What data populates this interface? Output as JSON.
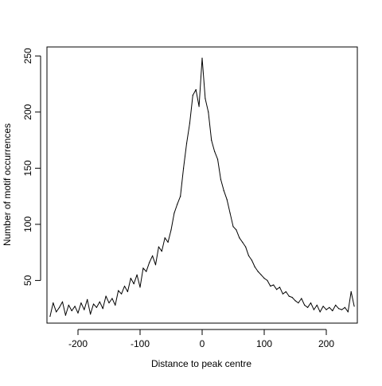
{
  "chart_data": {
    "type": "line",
    "title": "",
    "xlabel": "Distance to peak centre",
    "ylabel": "Number of motif occurrences",
    "xlim": [
      -250,
      250
    ],
    "ylim": [
      12,
      258
    ],
    "xticks": [
      -200,
      -100,
      0,
      100,
      200
    ],
    "xtick_labels": [
      "-200",
      "-100",
      "0",
      "100",
      "200"
    ],
    "yticks": [
      50,
      100,
      150,
      200,
      250
    ],
    "ytick_labels": [
      "50",
      "100",
      "150",
      "200",
      "250"
    ],
    "grid": false,
    "legend": "none",
    "line_color": "#000000",
    "series": [
      {
        "x": [
          -245,
          -240,
          -235,
          -230,
          -225,
          -220,
          -215,
          -210,
          -205,
          -200,
          -195,
          -190,
          -185,
          -180,
          -175,
          -170,
          -165,
          -160,
          -155,
          -150,
          -145,
          -140,
          -135,
          -130,
          -125,
          -120,
          -115,
          -110,
          -105,
          -100,
          -95,
          -90,
          -85,
          -80,
          -75,
          -70,
          -65,
          -60,
          -55,
          -50,
          -45,
          -40,
          -35,
          -30,
          -25,
          -20,
          -15,
          -10,
          -5,
          0,
          5,
          10,
          15,
          20,
          25,
          30,
          35,
          40,
          45,
          50,
          55,
          60,
          65,
          70,
          75,
          80,
          85,
          90,
          95,
          100,
          105,
          110,
          115,
          120,
          125,
          130,
          135,
          140,
          145,
          150,
          155,
          160,
          165,
          170,
          175,
          180,
          185,
          190,
          195,
          200,
          205,
          210,
          215,
          220,
          225,
          230,
          235,
          240,
          245
        ],
        "y": [
          18,
          30,
          22,
          26,
          31,
          19,
          28,
          23,
          27,
          21,
          30,
          24,
          33,
          20,
          29,
          26,
          31,
          25,
          36,
          30,
          34,
          28,
          41,
          38,
          45,
          40,
          52,
          47,
          55,
          44,
          61,
          58,
          66,
          72,
          64,
          80,
          76,
          88,
          84,
          95,
          110,
          118,
          125,
          150,
          172,
          190,
          215,
          220,
          205,
          248,
          212,
          200,
          175,
          165,
          158,
          140,
          130,
          122,
          110,
          98,
          95,
          88,
          84,
          80,
          72,
          68,
          62,
          58,
          55,
          52,
          50,
          45,
          46,
          42,
          44,
          38,
          40,
          36,
          35,
          32,
          30,
          34,
          28,
          26,
          30,
          24,
          28,
          22,
          27,
          24,
          26,
          23,
          28,
          25,
          24,
          26,
          22,
          40,
          27
        ]
      }
    ]
  }
}
